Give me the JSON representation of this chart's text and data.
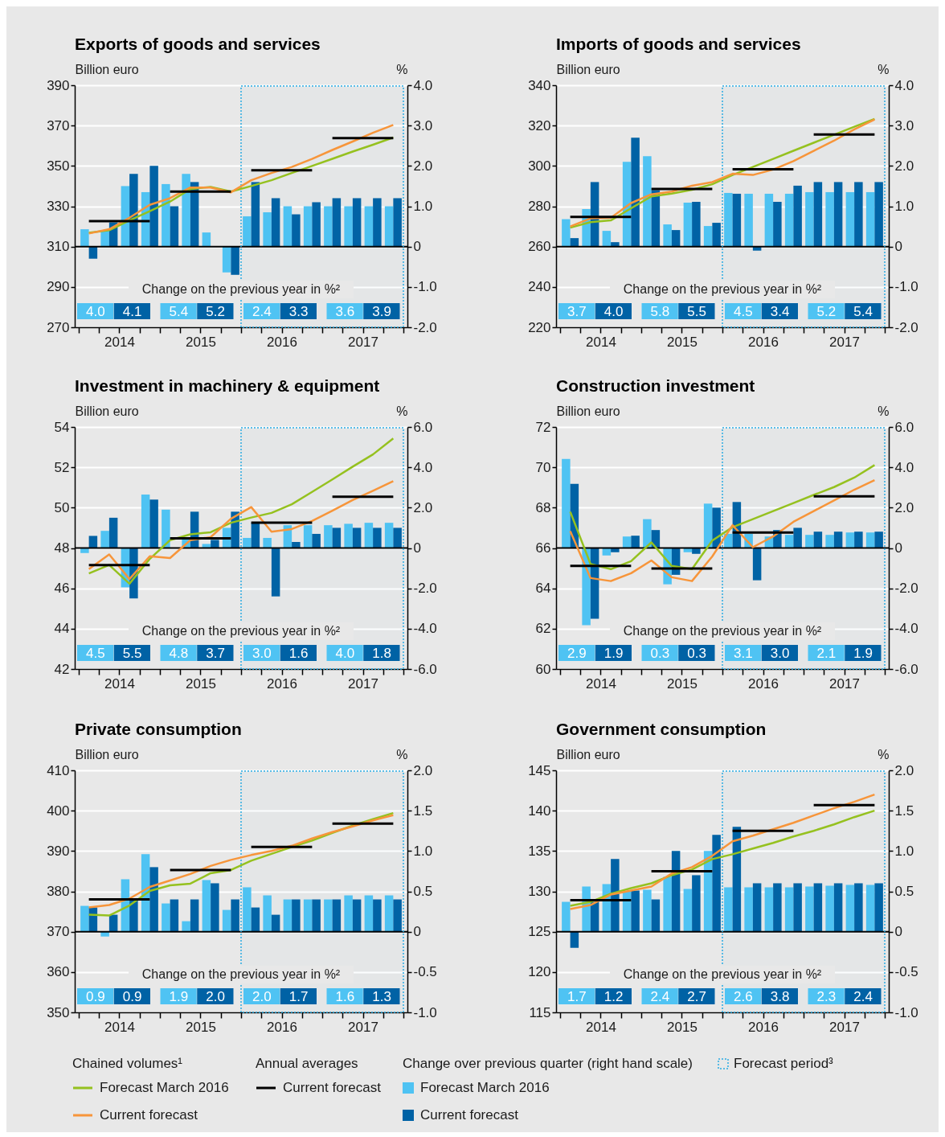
{
  "chart_data": [
    {
      "type": "bar",
      "title": "Exports of goods and services",
      "ylabel": "Billion euro",
      "y2label": "%",
      "xlim": [
        2014,
        2018
      ],
      "x": [
        2014.125,
        2014.375,
        2014.625,
        2014.875,
        2015.125,
        2015.375,
        2015.625,
        2015.875,
        2016.125,
        2016.375,
        2016.625,
        2016.875,
        2017.125,
        2017.375,
        2017.625,
        2017.875
      ],
      "xticks": [
        {
          "value": 2014,
          "label": null
        },
        {
          "value": 2014.25,
          "label": null
        },
        {
          "value": 2014.5,
          "label": "2014"
        },
        {
          "value": 2014.75,
          "label": null
        },
        {
          "value": 2015,
          "label": null
        },
        {
          "value": 2015.25,
          "label": null
        },
        {
          "value": 2015.5,
          "label": "2015"
        },
        {
          "value": 2015.75,
          "label": null
        },
        {
          "value": 2016,
          "label": null
        },
        {
          "value": 2016.25,
          "label": null
        },
        {
          "value": 2016.5,
          "label": "2016"
        },
        {
          "value": 2016.75,
          "label": null
        },
        {
          "value": 2017,
          "label": null
        },
        {
          "value": 2017.25,
          "label": null
        },
        {
          "value": 2017.5,
          "label": "2017"
        },
        {
          "value": 2017.75,
          "label": null
        },
        {
          "value": 2018,
          "label": null
        }
      ],
      "ylim": [
        270,
        390
      ],
      "yticks": [
        270,
        290,
        310,
        330,
        350,
        370,
        390
      ],
      "y2lim": [
        -2,
        4
      ],
      "y2ticks": [
        {
          "value": -2,
          "label": "-2.0"
        },
        {
          "value": -1,
          "label": "-1.0"
        },
        0,
        {
          "value": 1,
          "label": "1.0"
        },
        {
          "value": 2,
          "label": "2.0"
        },
        {
          "value": 3,
          "label": "3.0"
        },
        {
          "value": 4,
          "label": "4.0"
        }
      ],
      "grid": "y",
      "series": [
        {
          "type": "line",
          "color": "#95c11f",
          "values": [
            316.8,
            318.1,
            323,
            327.6,
            332.3,
            338.5,
            339.6,
            337.3,
            340,
            342.9,
            346.5,
            350,
            353.5,
            357.1,
            360.5,
            364.1
          ]
        },
        {
          "type": "line",
          "color": "#f7953a",
          "values": [
            316.5,
            318.6,
            324.3,
            330.7,
            334,
            339.3,
            339.3,
            336.9,
            342.9,
            346.5,
            349.5,
            353.5,
            357.9,
            362.1,
            366.4,
            370.3
          ]
        },
        {
          "type": "line",
          "color": "#000000",
          "x": [
            2014.125,
            2014.875,
            2015,
            2015.125,
            2015.875,
            2016,
            2016.125,
            2016.875,
            2017,
            2017.125,
            2017.875
          ],
          "values": [
            322.6,
            322.6,
            null,
            337.3,
            337.3,
            null,
            347.8,
            347.8,
            null,
            363.8,
            363.8
          ]
        },
        {
          "type": "bar",
          "axis": "y2",
          "color": "#4fc3f3",
          "values": [
            0.43,
            0.4,
            1.5,
            1.35,
            1.55,
            1.8,
            0.35,
            -0.64,
            0.75,
            0.85,
            1.0,
            1.0,
            1.0,
            1.0,
            1.0,
            1.0
          ]
        },
        {
          "type": "bar",
          "axis": "y2",
          "color": "#0062a5",
          "values": [
            -0.3,
            0.6,
            1.8,
            2.0,
            1.0,
            1.6,
            0,
            -0.7,
            1.6,
            1.2,
            0.8,
            1.1,
            1.2,
            1.2,
            1.2,
            1.2
          ]
        }
      ],
      "ref_lines": [
        {
          "axis": "y2",
          "value": 0,
          "color": "#000000"
        }
      ],
      "bands": [
        {
          "axis": "x",
          "from": 2016,
          "to": 2018,
          "color": "#29abe2"
        }
      ],
      "annotations": [
        "Change on the previous year in %²",
        "4.0",
        "4.1",
        "5.4",
        "5.2",
        "2.4",
        "3.3",
        "3.6",
        "3.9"
      ]
    },
    {
      "type": "bar",
      "title": "Imports of goods and services",
      "ylabel": "Billion euro",
      "y2label": "%",
      "xlim": [
        2014,
        2018
      ],
      "x": [
        2014.125,
        2014.375,
        2014.625,
        2014.875,
        2015.125,
        2015.375,
        2015.625,
        2015.875,
        2016.125,
        2016.375,
        2016.625,
        2016.875,
        2017.125,
        2017.375,
        2017.625,
        2017.875
      ],
      "xticks": [
        {
          "value": 2014,
          "label": null
        },
        {
          "value": 2014.25,
          "label": null
        },
        {
          "value": 2014.5,
          "label": "2014"
        },
        {
          "value": 2014.75,
          "label": null
        },
        {
          "value": 2015,
          "label": null
        },
        {
          "value": 2015.25,
          "label": null
        },
        {
          "value": 2015.5,
          "label": "2015"
        },
        {
          "value": 2015.75,
          "label": null
        },
        {
          "value": 2016,
          "label": null
        },
        {
          "value": 2016.25,
          "label": null
        },
        {
          "value": 2016.5,
          "label": "2016"
        },
        {
          "value": 2016.75,
          "label": null
        },
        {
          "value": 2017,
          "label": null
        },
        {
          "value": 2017.25,
          "label": null
        },
        {
          "value": 2017.5,
          "label": "2017"
        },
        {
          "value": 2017.75,
          "label": null
        },
        {
          "value": 2018,
          "label": null
        }
      ],
      "ylim": [
        220,
        340
      ],
      "yticks": [
        220,
        240,
        260,
        280,
        300,
        320,
        340
      ],
      "y2lim": [
        -2,
        4
      ],
      "y2ticks": [
        {
          "value": -2,
          "label": "-2.0"
        },
        {
          "value": -1,
          "label": "-1.0"
        },
        0,
        {
          "value": 1,
          "label": "1.0"
        },
        {
          "value": 2,
          "label": "2.0"
        },
        {
          "value": 3,
          "label": "3.0"
        },
        {
          "value": 4,
          "label": "4.0"
        }
      ],
      "grid": "y",
      "series": [
        {
          "type": "line",
          "color": "#95c11f",
          "values": [
            269.4,
            272.1,
            273,
            279,
            284.9,
            286.3,
            288.2,
            290.9,
            295.5,
            299.5,
            303.5,
            307.5,
            311.5,
            315.4,
            319.4,
            323.3
          ]
        },
        {
          "type": "line",
          "color": "#f7953a",
          "values": [
            270,
            274,
            274.3,
            281.6,
            285.9,
            287.3,
            290.2,
            292,
            296.1,
            295.5,
            298.2,
            302.4,
            307.5,
            312.5,
            318.1,
            323
          ]
        },
        {
          "type": "line",
          "color": "#000000",
          "x": [
            2014.125,
            2014.875,
            2015,
            2015.125,
            2015.875,
            2016,
            2016.125,
            2016.875,
            2017,
            2017.125,
            2017.875
          ],
          "values": [
            274.7,
            274.7,
            null,
            288.6,
            288.6,
            null,
            298.3,
            298.3,
            null,
            315.6,
            315.6
          ]
        },
        {
          "type": "bar",
          "axis": "y2",
          "color": "#4fc3f3",
          "values": [
            0.68,
            0.93,
            0.39,
            2.1,
            2.24,
            0.55,
            1.09,
            0.51,
            1.33,
            1.31,
            1.31,
            1.31,
            1.35,
            1.35,
            1.35,
            1.35
          ]
        },
        {
          "type": "bar",
          "axis": "y2",
          "color": "#0062a5",
          "values": [
            0.21,
            1.6,
            0.11,
            2.7,
            1.4,
            0.41,
            1.11,
            0.59,
            1.31,
            -0.1,
            1.11,
            1.51,
            1.6,
            1.6,
            1.6,
            1.6
          ]
        }
      ],
      "ref_lines": [
        {
          "axis": "y2",
          "value": 0,
          "color": "#000000"
        }
      ],
      "bands": [
        {
          "axis": "x",
          "from": 2016,
          "to": 2018,
          "color": "#29abe2"
        }
      ],
      "annotations": [
        "Change on the previous year in %²",
        "3.7",
        "4.0",
        "5.8",
        "5.5",
        "4.5",
        "3.4",
        "5.2",
        "5.4"
      ]
    },
    {
      "type": "bar",
      "title": "Investment in machinery & equipment",
      "ylabel": "Billion euro",
      "y2label": "%",
      "xlim": [
        2014,
        2018
      ],
      "x": [
        2014.125,
        2014.375,
        2014.625,
        2014.875,
        2015.125,
        2015.375,
        2015.625,
        2015.875,
        2016.125,
        2016.375,
        2016.625,
        2016.875,
        2017.125,
        2017.375,
        2017.625,
        2017.875
      ],
      "xticks": [
        {
          "value": 2014,
          "label": null
        },
        {
          "value": 2014.25,
          "label": null
        },
        {
          "value": 2014.5,
          "label": "2014"
        },
        {
          "value": 2014.75,
          "label": null
        },
        {
          "value": 2015,
          "label": null
        },
        {
          "value": 2015.25,
          "label": null
        },
        {
          "value": 2015.5,
          "label": "2015"
        },
        {
          "value": 2015.75,
          "label": null
        },
        {
          "value": 2016,
          "label": null
        },
        {
          "value": 2016.25,
          "label": null
        },
        {
          "value": 2016.5,
          "label": "2016"
        },
        {
          "value": 2016.75,
          "label": null
        },
        {
          "value": 2017,
          "label": null
        },
        {
          "value": 2017.25,
          "label": null
        },
        {
          "value": 2017.5,
          "label": "2017"
        },
        {
          "value": 2017.75,
          "label": null
        },
        {
          "value": 2018,
          "label": null
        }
      ],
      "ylim": [
        42,
        54
      ],
      "yticks": [
        42,
        44,
        46,
        48,
        50,
        52,
        54
      ],
      "y2lim": [
        -6,
        6
      ],
      "y2ticks": [
        {
          "value": -6,
          "label": "-6.0"
        },
        {
          "value": -4,
          "label": "-4.0"
        },
        {
          "value": -2,
          "label": "-2.0"
        },
        0,
        {
          "value": 2,
          "label": "2.0"
        },
        {
          "value": 4,
          "label": "4.0"
        },
        {
          "value": 6,
          "label": "6.0"
        }
      ],
      "grid": "y",
      "series": [
        {
          "type": "line",
          "color": "#95c11f",
          "values": [
            46.74,
            47.16,
            46.23,
            47.46,
            48.39,
            48.68,
            48.78,
            49.25,
            49.51,
            49.74,
            50.17,
            50.78,
            51.4,
            52.03,
            52.64,
            53.43
          ]
        },
        {
          "type": "line",
          "color": "#f7953a",
          "values": [
            46.95,
            47.68,
            46.46,
            47.59,
            47.5,
            48.39,
            48.54,
            49.45,
            50.03,
            48.81,
            48.94,
            49.34,
            49.85,
            50.38,
            50.84,
            51.31
          ]
        },
        {
          "type": "line",
          "color": "#000000",
          "x": [
            2014.125,
            2014.875,
            2015,
            2015.125,
            2015.875,
            2016,
            2016.125,
            2016.875,
            2017,
            2017.125,
            2017.875
          ],
          "values": [
            47.15,
            47.15,
            null,
            48.48,
            48.48,
            null,
            49.26,
            49.26,
            null,
            50.54,
            50.54
          ]
        },
        {
          "type": "bar",
          "axis": "y2",
          "color": "#4fc3f3",
          "values": [
            -0.25,
            0.85,
            -1.95,
            2.65,
            1.9,
            0.5,
            0.2,
            1.0,
            0.5,
            0.5,
            1.13,
            1.13,
            1.13,
            1.2,
            1.25,
            1.25
          ]
        },
        {
          "type": "bar",
          "axis": "y2",
          "color": "#0062a5",
          "values": [
            0.6,
            1.5,
            -2.5,
            2.4,
            null,
            1.8,
            0.4,
            1.8,
            1.25,
            -2.4,
            0.3,
            0.7,
            1.0,
            1.0,
            1.0,
            1.0
          ]
        }
      ],
      "ref_lines": [
        {
          "axis": "y2",
          "value": 0,
          "color": "#000000"
        }
      ],
      "bands": [
        {
          "axis": "x",
          "from": 2016,
          "to": 2018,
          "color": "#29abe2"
        }
      ],
      "annotations": [
        "Change on the previous year in %²",
        "4.5",
        "5.5",
        "4.8",
        "3.7",
        "3.0",
        "1.6",
        "4.0",
        "1.8"
      ]
    },
    {
      "type": "bar",
      "title": "Construction investment",
      "ylabel": "Billion euro",
      "y2label": "%",
      "xlim": [
        2014,
        2018
      ],
      "x": [
        2014.125,
        2014.375,
        2014.625,
        2014.875,
        2015.125,
        2015.375,
        2015.625,
        2015.875,
        2016.125,
        2016.375,
        2016.625,
        2016.875,
        2017.125,
        2017.375,
        2017.625,
        2017.875
      ],
      "xticks": [
        {
          "value": 2014,
          "label": null
        },
        {
          "value": 2014.25,
          "label": null
        },
        {
          "value": 2014.5,
          "label": "2014"
        },
        {
          "value": 2014.75,
          "label": null
        },
        {
          "value": 2015,
          "label": null
        },
        {
          "value": 2015.25,
          "label": null
        },
        {
          "value": 2015.5,
          "label": "2015"
        },
        {
          "value": 2015.75,
          "label": null
        },
        {
          "value": 2016,
          "label": null
        },
        {
          "value": 2016.25,
          "label": null
        },
        {
          "value": 2016.5,
          "label": "2016"
        },
        {
          "value": 2016.75,
          "label": null
        },
        {
          "value": 2017,
          "label": null
        },
        {
          "value": 2017.25,
          "label": null
        },
        {
          "value": 2017.5,
          "label": "2017"
        },
        {
          "value": 2017.75,
          "label": null
        },
        {
          "value": 2018,
          "label": null
        }
      ],
      "ylim": [
        60,
        72
      ],
      "yticks": [
        60,
        62,
        64,
        66,
        68,
        70,
        72
      ],
      "y2lim": [
        -6,
        6
      ],
      "y2ticks": [
        {
          "value": -6,
          "label": "-6.0"
        },
        {
          "value": -4,
          "label": "-4.0"
        },
        {
          "value": -2,
          "label": "-2.0"
        },
        0,
        {
          "value": 2,
          "label": "2.0"
        },
        {
          "value": 4,
          "label": "4.0"
        },
        {
          "value": 6,
          "label": "6.0"
        }
      ],
      "grid": "y",
      "series": [
        {
          "type": "line",
          "color": "#95c11f",
          "values": [
            67.8,
            65.2,
            64.95,
            65.35,
            66.28,
            65.11,
            64.95,
            66.37,
            67.03,
            67.43,
            67.83,
            68.23,
            68.63,
            69.02,
            69.49,
            70.11
          ]
        },
        {
          "type": "line",
          "color": "#f7953a",
          "values": [
            66.84,
            64.51,
            64.36,
            64.75,
            65.38,
            64.55,
            64.36,
            65.58,
            67.13,
            66.04,
            66.57,
            67.3,
            67.83,
            68.36,
            68.89,
            69.36
          ]
        },
        {
          "type": "line",
          "color": "#000000",
          "x": [
            2014.125,
            2014.875,
            2015,
            2015.125,
            2015.875,
            2016,
            2016.125,
            2016.875,
            2017,
            2017.125,
            2017.875
          ],
          "values": [
            65.11,
            65.11,
            null,
            64.98,
            64.98,
            null,
            66.77,
            66.77,
            null,
            68.56,
            68.56
          ]
        },
        {
          "type": "bar",
          "axis": "y2",
          "color": "#4fc3f3",
          "values": [
            4.42,
            -3.83,
            -0.37,
            0.57,
            1.43,
            -1.8,
            -0.21,
            2.2,
            0.7,
            0.7,
            0.57,
            0.65,
            0.65,
            0.65,
            0.77,
            0.77
          ]
        },
        {
          "type": "bar",
          "axis": "y2",
          "color": "#0062a5",
          "values": [
            3.18,
            -3.51,
            -0.21,
            0.61,
            0.89,
            -1.33,
            -0.29,
            2.0,
            2.28,
            -1.6,
            0.89,
            1.0,
            0.81,
            0.81,
            0.81,
            0.81
          ]
        }
      ],
      "ref_lines": [
        {
          "axis": "y2",
          "value": 0,
          "color": "#000000"
        }
      ],
      "bands": [
        {
          "axis": "x",
          "from": 2016,
          "to": 2018,
          "color": "#29abe2"
        }
      ],
      "annotations": [
        "Change on the previous year in %²",
        "2.9",
        "1.9",
        "0.3",
        "0.3",
        "3.1",
        "3.0",
        "2.1",
        "1.9"
      ]
    },
    {
      "type": "bar",
      "title": "Private consumption",
      "ylabel": "Billion euro",
      "y2label": "%",
      "xlim": [
        2014,
        2018
      ],
      "x": [
        2014.125,
        2014.375,
        2014.625,
        2014.875,
        2015.125,
        2015.375,
        2015.625,
        2015.875,
        2016.125,
        2016.375,
        2016.625,
        2016.875,
        2017.125,
        2017.375,
        2017.625,
        2017.875
      ],
      "xticks": [
        {
          "value": 2014,
          "label": null
        },
        {
          "value": 2014.25,
          "label": null
        },
        {
          "value": 2014.5,
          "label": "2014"
        },
        {
          "value": 2014.75,
          "label": null
        },
        {
          "value": 2015,
          "label": null
        },
        {
          "value": 2015.25,
          "label": null
        },
        {
          "value": 2015.5,
          "label": "2015"
        },
        {
          "value": 2015.75,
          "label": null
        },
        {
          "value": 2016,
          "label": null
        },
        {
          "value": 2016.25,
          "label": null
        },
        {
          "value": 2016.5,
          "label": "2016"
        },
        {
          "value": 2016.75,
          "label": null
        },
        {
          "value": 2017,
          "label": null
        },
        {
          "value": 2017.25,
          "label": null
        },
        {
          "value": 2017.5,
          "label": "2017"
        },
        {
          "value": 2017.75,
          "label": null
        },
        {
          "value": 2018,
          "label": null
        }
      ],
      "ylim": [
        350,
        410
      ],
      "yticks": [
        350,
        360,
        370,
        380,
        390,
        400,
        410
      ],
      "y2lim": [
        -1,
        2
      ],
      "y2ticks": [
        {
          "value": -1,
          "label": "-1.0"
        },
        -0.5,
        0,
        0.5,
        {
          "value": 1,
          "label": "1.0"
        },
        1.5,
        {
          "value": 2,
          "label": "2.0"
        }
      ],
      "grid": "y",
      "series": [
        {
          "type": "line",
          "color": "#95c11f",
          "values": [
            374.2,
            374,
            376.5,
            380.1,
            381.5,
            381.9,
            384.5,
            385.3,
            387.6,
            389.3,
            391,
            392.6,
            394.5,
            396.3,
            397.9,
            399.4
          ]
        },
        {
          "type": "line",
          "color": "#f7953a",
          "values": [
            376,
            376.6,
            378.2,
            381.1,
            382.7,
            384.3,
            386.3,
            387.8,
            389,
            390,
            391.3,
            393.1,
            394.7,
            396.1,
            397.6,
            398.9
          ]
        },
        {
          "type": "line",
          "color": "#000000",
          "x": [
            2014.125,
            2014.875,
            2015,
            2015.125,
            2015.875,
            2016,
            2016.125,
            2016.875,
            2017,
            2017.125,
            2017.875
          ],
          "values": [
            378,
            378,
            null,
            385.3,
            385.3,
            null,
            391,
            391,
            null,
            396.8,
            396.8
          ]
        },
        {
          "type": "bar",
          "axis": "y2",
          "color": "#4fc3f3",
          "values": [
            0.32,
            -0.06,
            0.65,
            0.96,
            0.35,
            0.13,
            0.64,
            0.27,
            0.55,
            0.45,
            0.4,
            0.4,
            0.4,
            0.45,
            0.45,
            0.45
          ]
        },
        {
          "type": "bar",
          "axis": "y2",
          "color": "#0062a5",
          "values": [
            0.3,
            0.21,
            0.4,
            0.8,
            0.4,
            0.4,
            0.6,
            0.4,
            0.3,
            0.21,
            0.4,
            0.4,
            0.4,
            0.4,
            0.4,
            0.4
          ]
        }
      ],
      "ref_lines": [
        {
          "axis": "y2",
          "value": 0,
          "color": "#000000"
        }
      ],
      "bands": [
        {
          "axis": "x",
          "from": 2016,
          "to": 2018,
          "color": "#29abe2"
        }
      ],
      "annotations": [
        "Change on the previous year in %²",
        "0.9",
        "0.9",
        "1.9",
        "2.0",
        "2.0",
        "1.7",
        "1.6",
        "1.3"
      ]
    },
    {
      "type": "bar",
      "title": "Government consumption",
      "ylabel": "Billion euro",
      "y2label": "%",
      "xlim": [
        2014,
        2018
      ],
      "x": [
        2014.125,
        2014.375,
        2014.625,
        2014.875,
        2015.125,
        2015.375,
        2015.625,
        2015.875,
        2016.125,
        2016.375,
        2016.625,
        2016.875,
        2017.125,
        2017.375,
        2017.625,
        2017.875
      ],
      "xticks": [
        {
          "value": 2014,
          "label": null
        },
        {
          "value": 2014.25,
          "label": null
        },
        {
          "value": 2014.5,
          "label": "2014"
        },
        {
          "value": 2014.75,
          "label": null
        },
        {
          "value": 2015,
          "label": null
        },
        {
          "value": 2015.25,
          "label": null
        },
        {
          "value": 2015.5,
          "label": "2015"
        },
        {
          "value": 2015.75,
          "label": null
        },
        {
          "value": 2016,
          "label": null
        },
        {
          "value": 2016.25,
          "label": null
        },
        {
          "value": 2016.5,
          "label": "2016"
        },
        {
          "value": 2016.75,
          "label": null
        },
        {
          "value": 2017,
          "label": null
        },
        {
          "value": 2017.25,
          "label": null
        },
        {
          "value": 2017.5,
          "label": "2017"
        },
        {
          "value": 2017.75,
          "label": null
        },
        {
          "value": 2018,
          "label": null
        }
      ],
      "ylim": [
        115,
        145
      ],
      "yticks": [
        115,
        120,
        125,
        130,
        135,
        140,
        145
      ],
      "y2lim": [
        -1,
        2
      ],
      "y2ticks": [
        {
          "value": -1,
          "label": "-1.0"
        },
        -0.5,
        0,
        0.5,
        {
          "value": 1,
          "label": "1.0"
        },
        1.5,
        {
          "value": 2,
          "label": "2.0"
        }
      ],
      "grid": "y",
      "legend": "bottom",
      "series": [
        {
          "type": "line",
          "name": "Forecast March 2016",
          "color": "#95c11f",
          "values": [
            128.2,
            128.7,
            129.7,
            130.4,
            131,
            132,
            132.7,
            134,
            134.6,
            135.3,
            136,
            136.8,
            137.5,
            138.3,
            139.2,
            140
          ]
        },
        {
          "type": "line",
          "name": "Current forecast",
          "color": "#f7953a",
          "values": [
            127.8,
            128.3,
            129.6,
            130.1,
            130.6,
            132.2,
            133,
            134.4,
            136.2,
            136.9,
            137.7,
            138.5,
            139.4,
            140.3,
            141.1,
            142
          ]
        },
        {
          "type": "line",
          "name": "Current forecast",
          "color": "#000000",
          "x": [
            2014.125,
            2014.875,
            2015,
            2015.125,
            2015.875,
            2016,
            2016.125,
            2016.875,
            2017,
            2017.125,
            2017.875
          ],
          "values": [
            128.9,
            128.9,
            null,
            132.5,
            132.5,
            null,
            137.5,
            137.5,
            null,
            140.7,
            140.7
          ]
        },
        {
          "type": "bar",
          "axis": "y2",
          "name": "Forecast March 2016",
          "color": "#4fc3f3",
          "values": [
            0.37,
            0.56,
            0.59,
            0.5,
            0.52,
            0.68,
            0.53,
            1.0,
            0.55,
            0.55,
            0.55,
            0.55,
            0.56,
            0.57,
            0.58,
            0.58
          ]
        },
        {
          "type": "bar",
          "axis": "y2",
          "name": "Current forecast",
          "color": "#0062a5",
          "values": [
            -0.2,
            0.37,
            0.9,
            0.51,
            0.4,
            1.0,
            0.7,
            1.2,
            1.3,
            0.6,
            0.6,
            0.6,
            0.6,
            0.6,
            0.6,
            0.6
          ]
        }
      ],
      "ref_lines": [
        {
          "axis": "y2",
          "value": 0,
          "color": "#000000"
        }
      ],
      "bands": [
        {
          "axis": "x",
          "from": 2016,
          "to": 2018,
          "color": "#29abe2",
          "label": "Forecast period³"
        }
      ],
      "annotations": [
        "Change on the previous year in %²",
        "1.7",
        "1.2",
        "2.4",
        "2.7",
        "2.6",
        "3.8",
        "2.3",
        "2.4",
        "Chained volumes¹",
        "Annual averages",
        "Change over previous quarter (right hand scale)"
      ]
    }
  ]
}
